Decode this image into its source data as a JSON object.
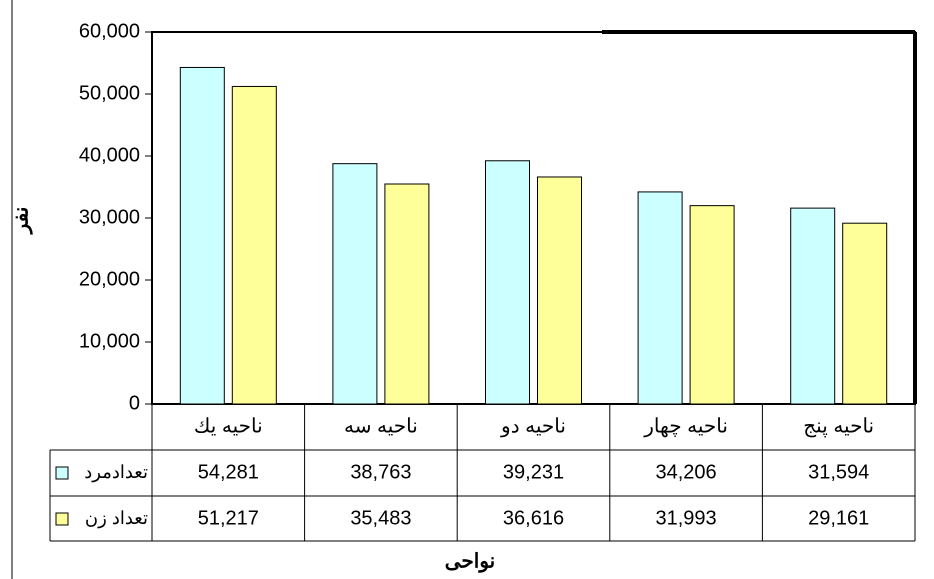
{
  "chart_data": {
    "type": "bar",
    "y_label": "نفر",
    "x_label": "نواحی",
    "categories": [
      "ناحیه يك",
      "ناحیه سه",
      "ناحیه دو",
      "ناحیه چهار",
      "ناحیه پنج"
    ],
    "series": [
      {
        "name": "تعدادمرد",
        "color": "#ccffff",
        "values": [
          54281,
          38763,
          39231,
          34206,
          31594
        ],
        "value_labels": [
          "54,281",
          "38,763",
          "39,231",
          "34,206",
          "31,594"
        ]
      },
      {
        "name": "تعداد زن",
        "color": "#ffff99",
        "values": [
          51217,
          35483,
          36616,
          31993,
          29161
        ],
        "value_labels": [
          "51,217",
          "35,483",
          "36,616",
          "31,993",
          "29,161"
        ]
      }
    ],
    "ylim": [
      0,
      60000
    ],
    "yticks": [
      0,
      {
        "value": 10000,
        "label": "10,000"
      },
      {
        "value": 20000,
        "label": "20,000"
      },
      {
        "value": 30000,
        "label": "30,000"
      },
      {
        "value": 40000,
        "label": "40,000"
      },
      {
        "value": 50000,
        "label": "50,000"
      },
      {
        "value": 60000,
        "label": "60,000"
      }
    ]
  }
}
